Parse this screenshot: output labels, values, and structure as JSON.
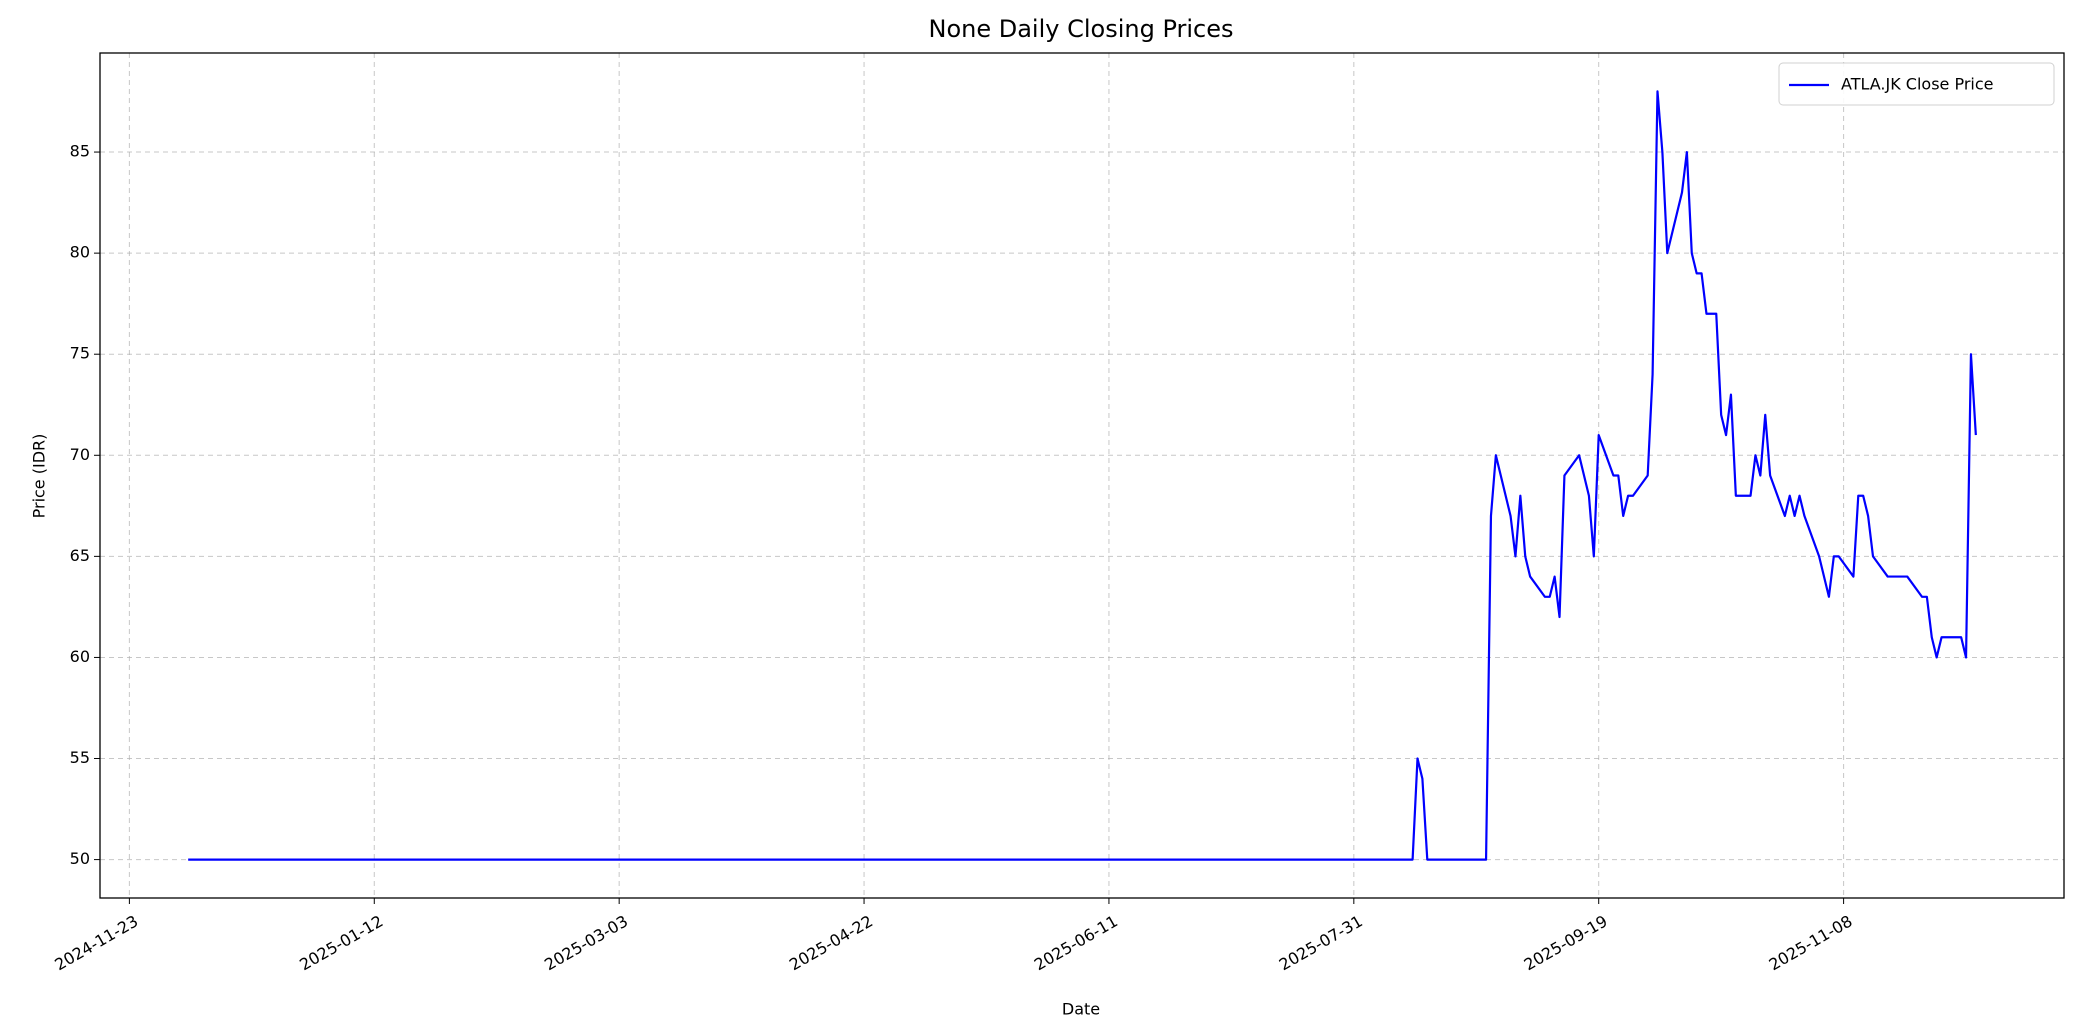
{
  "chart_data": {
    "type": "line",
    "title": "None Daily Closing Prices",
    "xlabel": "Date",
    "ylabel": "Price (IDR)",
    "x": [
      "2024-12-05",
      "2025-08-12",
      "2025-08-13",
      "2025-08-14",
      "2025-08-15",
      "2025-08-27",
      "2025-08-28",
      "2025-08-29",
      "2025-09-01",
      "2025-09-02",
      "2025-09-03",
      "2025-09-04",
      "2025-09-05",
      "2025-09-08",
      "2025-09-09",
      "2025-09-10",
      "2025-09-11",
      "2025-09-12",
      "2025-09-15",
      "2025-09-17",
      "2025-09-18",
      "2025-09-19",
      "2025-09-22",
      "2025-09-23",
      "2025-09-24",
      "2025-09-25",
      "2025-09-26",
      "2025-09-29",
      "2025-09-30",
      "2025-10-01",
      "2025-10-02",
      "2025-10-03",
      "2025-10-06",
      "2025-10-07",
      "2025-10-08",
      "2025-10-09",
      "2025-10-10",
      "2025-10-11",
      "2025-10-13",
      "2025-10-14",
      "2025-10-15",
      "2025-10-16",
      "2025-10-17",
      "2025-10-20",
      "2025-10-21",
      "2025-10-22",
      "2025-10-23",
      "2025-10-24",
      "2025-10-27",
      "2025-10-28",
      "2025-10-29",
      "2025-10-30",
      "2025-10-31",
      "2025-11-03",
      "2025-11-05",
      "2025-11-06",
      "2025-11-07",
      "2025-11-10",
      "2025-11-11",
      "2025-11-12",
      "2025-11-13",
      "2025-11-14",
      "2025-11-17",
      "2025-11-21",
      "2025-11-24",
      "2025-11-25",
      "2025-11-26",
      "2025-11-27",
      "2025-11-28",
      "2025-12-02",
      "2025-12-03",
      "2025-12-04",
      "2025-12-05"
    ],
    "series": [
      {
        "name": "ATLA.JK Close Price",
        "color": "#0000ff",
        "values": [
          50,
          50,
          55,
          54,
          50,
          50,
          67,
          70,
          67,
          65,
          68,
          65,
          64,
          63,
          63,
          64,
          62,
          69,
          70,
          68,
          65,
          71,
          69,
          69,
          67,
          68,
          68,
          69,
          74,
          88,
          85,
          80,
          83,
          85,
          80,
          79,
          79,
          77,
          77,
          72,
          71,
          73,
          68,
          68,
          70,
          69,
          72,
          69,
          67,
          68,
          67,
          68,
          67,
          65,
          63,
          65,
          65,
          64,
          68,
          68,
          67,
          65,
          64,
          64,
          63,
          63,
          61,
          60,
          61,
          61,
          60,
          75,
          71
        ]
      }
    ],
    "xlim": [
      "2024-11-17",
      "2025-12-23"
    ],
    "xticks": [
      "2024-11-23",
      "2025-01-12",
      "2025-03-03",
      "2025-04-22",
      "2025-06-11",
      "2025-07-31",
      "2025-09-19",
      "2025-11-08"
    ],
    "ylim": [
      48.1,
      89.9
    ],
    "yticks": [
      50,
      55,
      60,
      65,
      70,
      75,
      80,
      85
    ],
    "grid": true,
    "legend": "upper right"
  }
}
